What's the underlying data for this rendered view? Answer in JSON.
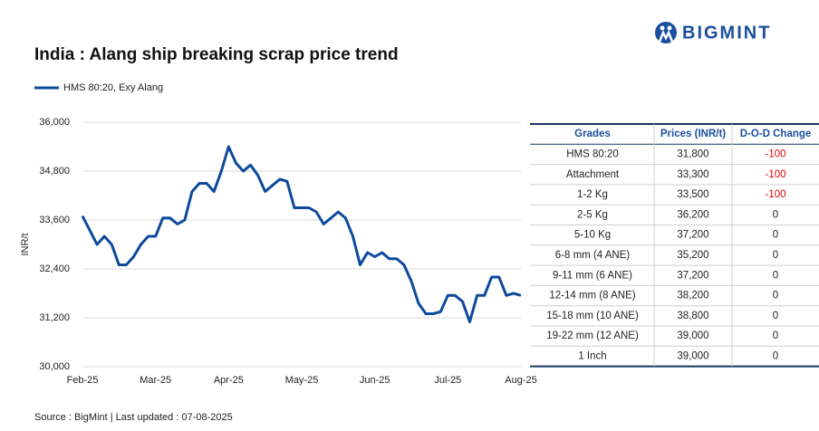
{
  "brand": "BIGMINT",
  "chart_data": {
    "type": "line",
    "title": "India : Alang ship breaking scrap price trend",
    "y_label": "INR/t",
    "categories": [
      "Feb-25",
      null,
      null,
      null,
      null,
      null,
      null,
      null,
      null,
      null,
      "Mar-25",
      null,
      null,
      null,
      null,
      null,
      null,
      null,
      null,
      null,
      "Apr-25",
      null,
      null,
      null,
      null,
      null,
      null,
      null,
      null,
      null,
      "May-25",
      null,
      null,
      null,
      null,
      null,
      null,
      null,
      null,
      null,
      "Jun-25",
      null,
      null,
      null,
      null,
      null,
      null,
      null,
      null,
      null,
      "Jul-25",
      null,
      null,
      null,
      null,
      null,
      null,
      null,
      null,
      null,
      "Aug-25"
    ],
    "series": [
      {
        "name": "HMS 80:20, Exy Alang",
        "color": "#0d4a9c",
        "values": [
          33700,
          33350,
          33000,
          33200,
          33000,
          32500,
          32500,
          32700,
          33000,
          33200,
          33200,
          33650,
          33650,
          33500,
          33600,
          34300,
          34500,
          34500,
          34300,
          34800,
          35400,
          35000,
          34800,
          34950,
          34700,
          34300,
          34450,
          34600,
          34550,
          33900,
          33900,
          33900,
          33800,
          33500,
          33650,
          33800,
          33650,
          33200,
          32500,
          32800,
          32700,
          32800,
          32650,
          32650,
          32500,
          32100,
          31550,
          31300,
          31300,
          31350,
          31750,
          31750,
          31600,
          31100,
          31750,
          31750,
          32200,
          32200,
          31750,
          31800,
          31750
        ]
      }
    ],
    "ylim": [
      30000,
      36000
    ],
    "yticks": [
      {
        "value": 30000,
        "label": "30,000"
      },
      {
        "value": 31200,
        "label": "31,200"
      },
      {
        "value": 32400,
        "label": "32,400"
      },
      {
        "value": 33600,
        "label": "33,600"
      },
      {
        "value": 34800,
        "label": "34,800"
      },
      {
        "value": 36000,
        "label": "36,000"
      }
    ],
    "grid": true,
    "legend": "top-left"
  },
  "table": {
    "header": [
      "Grades",
      "Prices (INR/t)",
      "D-O-D Change"
    ],
    "rows": [
      [
        "HMS 80:20",
        "31,800",
        "-100"
      ],
      [
        "Attachment",
        "33,300",
        "-100"
      ],
      [
        "1-2 Kg",
        "33,500",
        "-100"
      ],
      [
        "2-5 Kg",
        "36,200",
        "0"
      ],
      [
        "5-10 Kg",
        "37,200",
        "0"
      ],
      [
        "6-8 mm (4 ANE)",
        "35,200",
        "0"
      ],
      [
        "9-11 mm (6 ANE)",
        "37,200",
        "0"
      ],
      [
        "12-14 mm (8 ANE)",
        "38,200",
        "0"
      ],
      [
        "15-18 mm (10 ANE)",
        "38,800",
        "0"
      ],
      [
        "19-22 mm (12 ANE)",
        "39,000",
        "0"
      ],
      [
        "1 Inch",
        "39,000",
        "0"
      ]
    ]
  },
  "source": "Source : BigMint | Last updated : 07-08-2025"
}
